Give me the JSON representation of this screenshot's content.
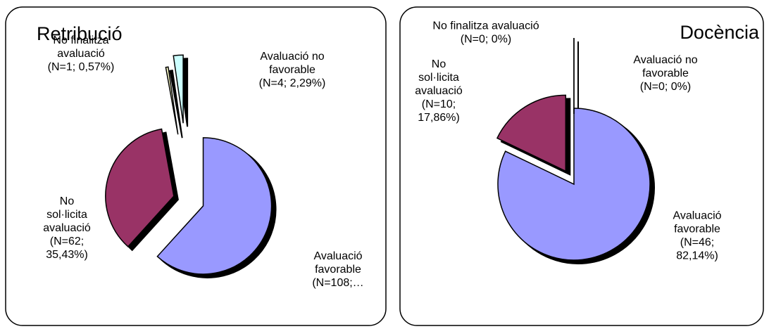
{
  "chart_data": [
    {
      "type": "pie",
      "title": "Retribució",
      "values": [
        108,
        62,
        1,
        4
      ],
      "value_labels": [
        [
          "Avaluació",
          "favorable",
          "(N=108;…"
        ],
        [
          "No",
          "sol·licita",
          "avaluació",
          "(N=62;",
          "35,43%)"
        ],
        [
          "No finalitza",
          "avaluació",
          "(N=1; 0,57%)"
        ],
        [
          "Avaluació  no",
          "favorable",
          "(N=4; 2,29%)"
        ]
      ],
      "colors": [
        "#9999ff",
        "#993366",
        "#ffffcc",
        "#ccffff"
      ]
    },
    {
      "type": "pie",
      "title": "Docència",
      "values": [
        46,
        10,
        0,
        0
      ],
      "value_labels": [
        [
          "Avaluació",
          "favorable",
          "(N=46;",
          "82,14%)"
        ],
        [
          "No",
          "sol·licita",
          "avaluació",
          "(N=10;",
          "17,86%)"
        ],
        [
          "No finalitza avaluació",
          "(N=0; 0%)"
        ],
        [
          "Avaluació  no",
          "favorable",
          "(N=0; 0%)"
        ]
      ],
      "colors": [
        "#9999ff",
        "#993366",
        "#ffffcc",
        "#ccffff"
      ]
    }
  ]
}
